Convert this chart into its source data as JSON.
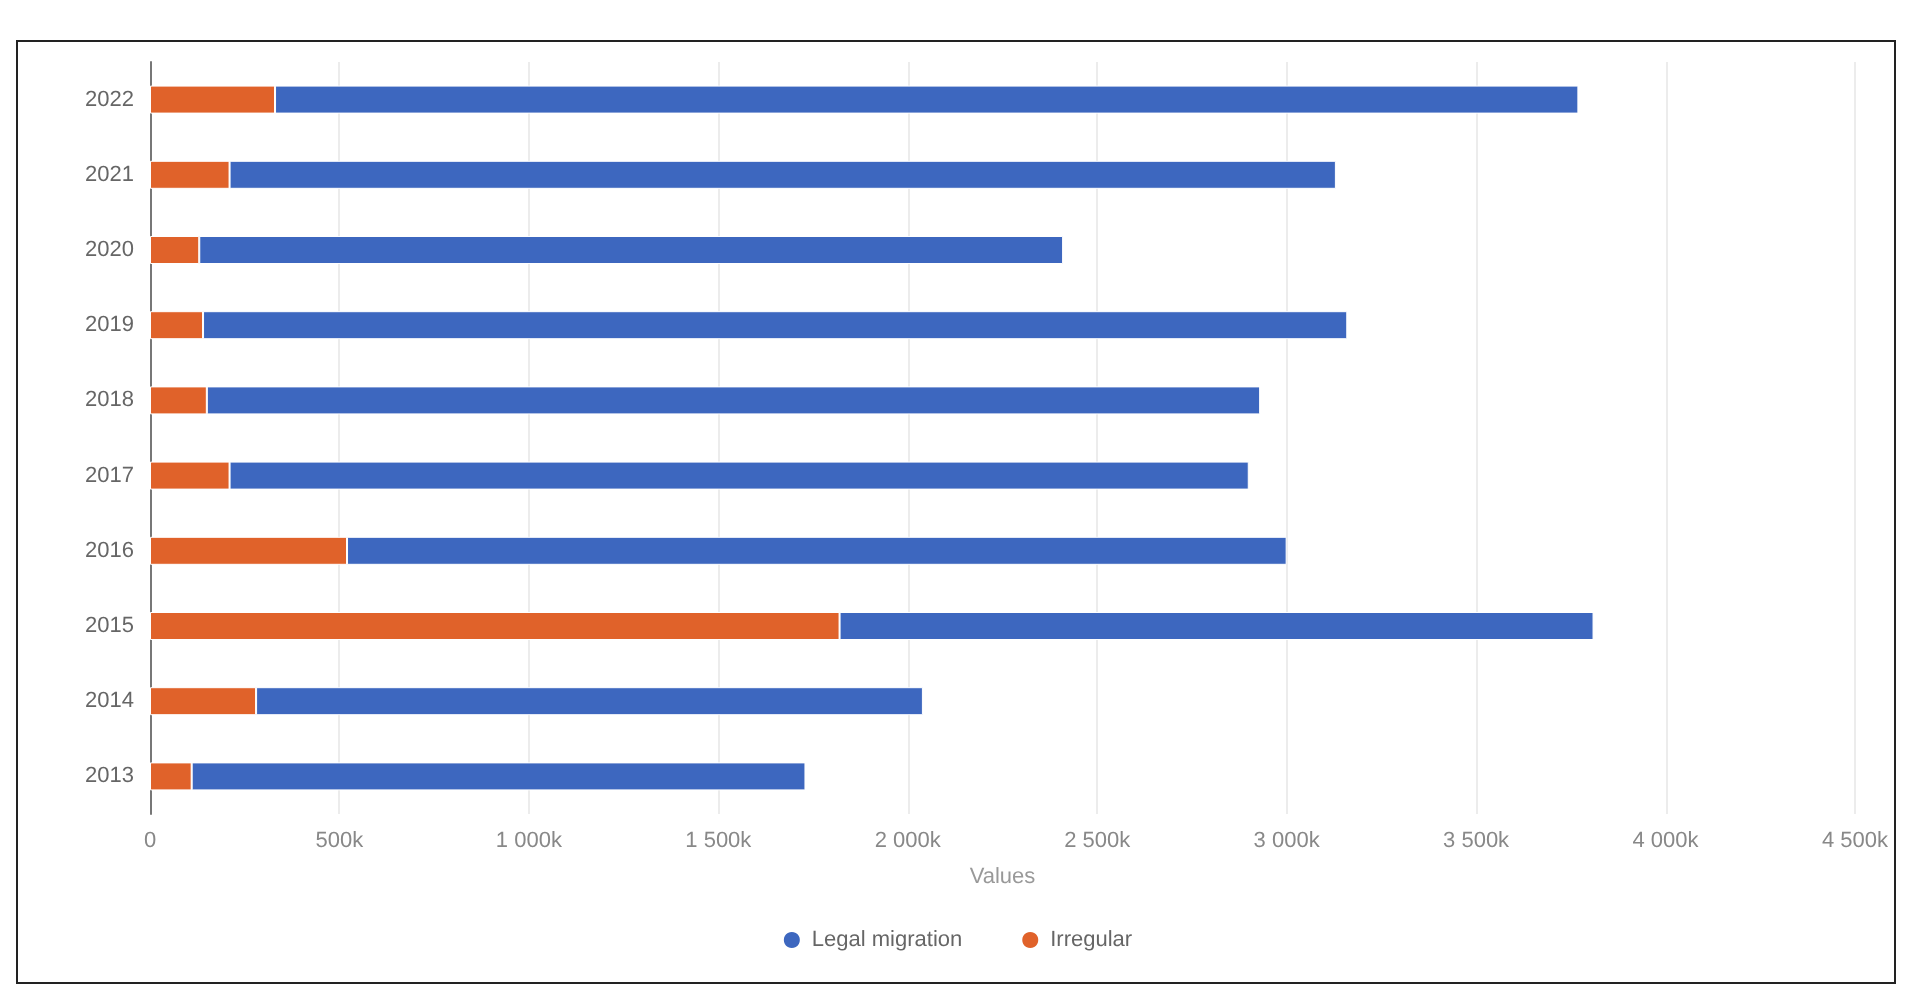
{
  "chart_data": {
    "type": "bar",
    "orientation": "horizontal",
    "stacked": true,
    "xlabel": "Values",
    "categories": [
      "2022",
      "2021",
      "2020",
      "2019",
      "2018",
      "2017",
      "2016",
      "2015",
      "2014",
      "2013"
    ],
    "series": [
      {
        "name": "Irregular",
        "color": "#e0622a",
        "values": [
          330000,
          210000,
          130000,
          140000,
          150000,
          210000,
          520000,
          1820000,
          280000,
          110000
        ]
      },
      {
        "name": "Legal migration",
        "color": "#3d67bf",
        "values": [
          3440000,
          2920000,
          2280000,
          3020000,
          2780000,
          2690000,
          2480000,
          1990000,
          1760000,
          1620000
        ]
      }
    ],
    "xlim": [
      0,
      4500000
    ],
    "xticks": [
      {
        "value": 0,
        "label": "0"
      },
      {
        "value": 500000,
        "label": "500k"
      },
      {
        "value": 1000000,
        "label": "1 000k"
      },
      {
        "value": 1500000,
        "label": "1 500k"
      },
      {
        "value": 2000000,
        "label": "2 000k"
      },
      {
        "value": 2500000,
        "label": "2 500k"
      },
      {
        "value": 3000000,
        "label": "3 000k"
      },
      {
        "value": 3500000,
        "label": "3 500k"
      },
      {
        "value": 4000000,
        "label": "4 000k"
      },
      {
        "value": 4500000,
        "label": "4 500k"
      }
    ],
    "grid": "x",
    "legend": "bottom"
  }
}
